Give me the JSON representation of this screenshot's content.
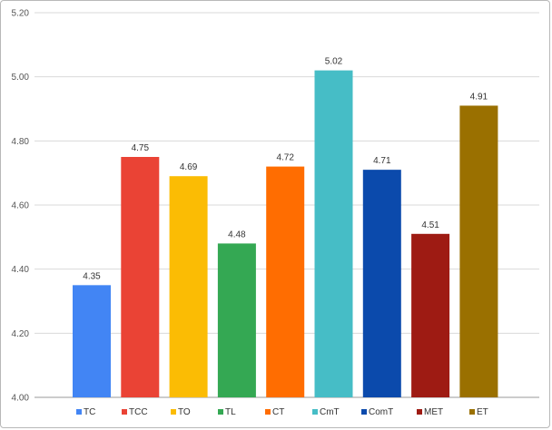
{
  "chart_data": {
    "type": "bar",
    "categories": [
      "TC",
      "TCC",
      "TO",
      "TL",
      "CT",
      "CmT",
      "ComT",
      "MET",
      "ET"
    ],
    "values": [
      4.35,
      4.75,
      4.69,
      4.48,
      4.72,
      5.02,
      4.71,
      4.51,
      4.91
    ],
    "data_labels": [
      "4.35",
      "4.75",
      "4.69",
      "4.48",
      "4.72",
      "5.02",
      "4.71",
      "4.51",
      "4.91"
    ],
    "colors": [
      "#4285f4",
      "#ea4335",
      "#fbbc04",
      "#34a853",
      "#ff6d01",
      "#46bdc6",
      "#0b4aac",
      "#9e1b13",
      "#9a7000"
    ],
    "ylim": [
      4.0,
      5.2
    ],
    "yticks": [
      "4.00",
      "4.20",
      "4.40",
      "4.60",
      "4.80",
      "5.00",
      "5.20"
    ],
    "title": "",
    "xlabel": "",
    "ylabel": "",
    "grid": true,
    "legend_position": "bottom"
  }
}
